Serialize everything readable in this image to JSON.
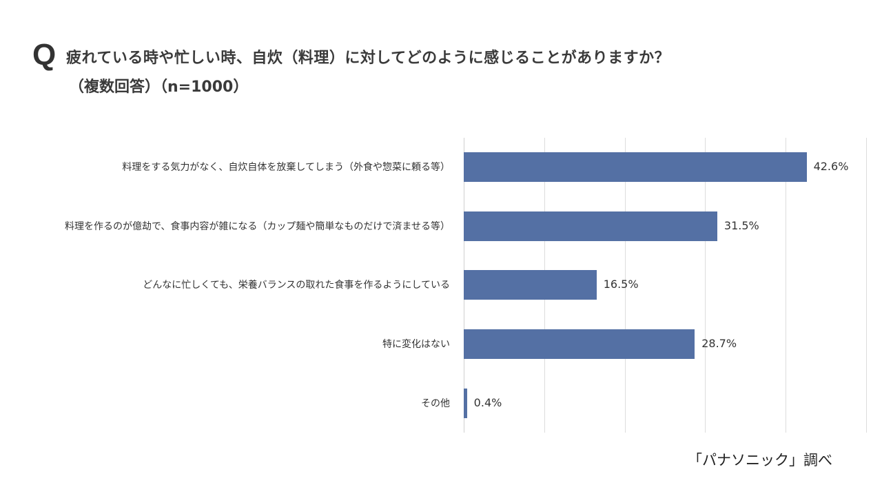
{
  "header": {
    "q_mark": "Q",
    "title_line1": "疲れている時や忙しい時、自炊（料理）に対してどのように感じることがありますか？",
    "title_line2": "（複数回答）（n=1000）"
  },
  "source": "「パナソニック」調べ",
  "colors": {
    "bar": "#5470a4",
    "grid": "#dcdcdc",
    "text": "#333333"
  },
  "chart_data": {
    "type": "bar",
    "orientation": "horizontal",
    "title": "疲れている時や忙しい時、自炊（料理）に対してどのように感じることがありますか？（複数回答）（n=1000）",
    "xlabel": "",
    "ylabel": "",
    "xlim": [
      0,
      50
    ],
    "grid": true,
    "gridlines_at": [
      0,
      10,
      20,
      30,
      40,
      50
    ],
    "legend": null,
    "categories": [
      "料理をする気力がなく、自炊自体を放棄してしまう（外食や惣菜に頼る等）",
      "料理を作るのが億劫で、食事内容が雑になる（カップ麺や簡単なものだけで済ませる等）",
      "どんなに忙しくても、栄養バランスの取れた食事を作るようにしている",
      "特に変化はない",
      "その他"
    ],
    "values": [
      42.6,
      31.5,
      16.5,
      28.7,
      0.4
    ],
    "value_labels": [
      "42.6%",
      "31.5%",
      "16.5%",
      "28.7%",
      "0.4%"
    ],
    "unit": "%",
    "source": "「パナソニック」調べ"
  }
}
